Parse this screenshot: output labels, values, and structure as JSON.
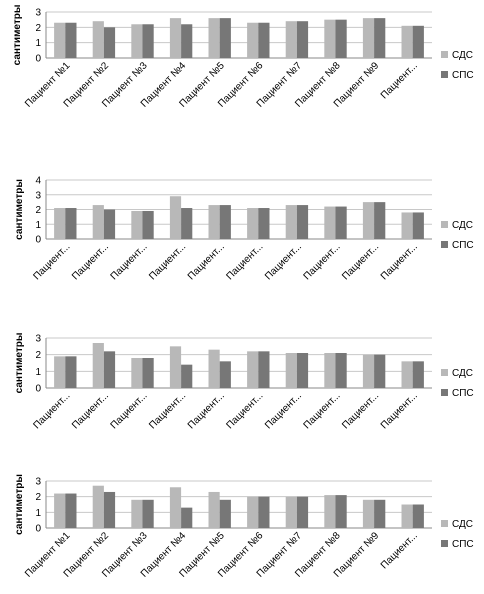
{
  "series_colors": {
    "sds": "#b8b8b8",
    "sps": "#777777"
  },
  "chart_data": [
    {
      "type": "bar",
      "ylabel": "сантиметры",
      "ylim": [
        0,
        3
      ],
      "yticks": [
        0,
        1,
        2,
        3
      ],
      "grid": true,
      "legend_position": "right",
      "categories": [
        "Пациент №1",
        "Пациент №2",
        "Пациент №3",
        "Пациент №4",
        "Пациент №5",
        "Пациент №6",
        "Пациент №7",
        "Пациент №8",
        "Пациент №9",
        "Пациент..."
      ],
      "series": [
        {
          "name": "СДС",
          "values": [
            2.3,
            2.4,
            2.2,
            2.6,
            2.6,
            2.3,
            2.4,
            2.5,
            2.6,
            2.1
          ]
        },
        {
          "name": "СПС",
          "values": [
            2.3,
            2.0,
            2.2,
            2.2,
            2.6,
            2.3,
            2.4,
            2.5,
            2.6,
            2.1
          ]
        }
      ]
    },
    {
      "type": "bar",
      "ylabel": "сантиметры",
      "ylim": [
        0,
        4
      ],
      "yticks": [
        0,
        1,
        2,
        3,
        4
      ],
      "grid": true,
      "legend_position": "right",
      "categories": [
        "Пациент...",
        "Пациент...",
        "Пациент...",
        "Пациент...",
        "Пациент...",
        "Пациент...",
        "Пациент...",
        "Пациент...",
        "Пациент...",
        "Пациент..."
      ],
      "series": [
        {
          "name": "СДС",
          "values": [
            2.1,
            2.3,
            1.9,
            2.9,
            2.3,
            2.1,
            2.3,
            2.2,
            2.5,
            1.8
          ]
        },
        {
          "name": "СПС",
          "values": [
            2.1,
            2.0,
            1.9,
            2.1,
            2.3,
            2.1,
            2.3,
            2.2,
            2.5,
            1.8
          ]
        }
      ]
    },
    {
      "type": "bar",
      "ylabel": "сантиметры",
      "ylim": [
        0,
        3
      ],
      "yticks": [
        0,
        1,
        2,
        3
      ],
      "grid": true,
      "legend_position": "right",
      "categories": [
        "Пациент...",
        "Пациент...",
        "Пациент...",
        "Пациент...",
        "Пациент...",
        "Пациент...",
        "Пациент...",
        "Пациент...",
        "Пациент...",
        "Пациент..."
      ],
      "series": [
        {
          "name": "СДС",
          "values": [
            1.9,
            2.7,
            1.8,
            2.5,
            2.3,
            2.2,
            2.1,
            2.1,
            2.0,
            1.6
          ]
        },
        {
          "name": "СПС",
          "values": [
            1.9,
            2.2,
            1.8,
            1.4,
            1.6,
            2.2,
            2.1,
            2.1,
            2.0,
            1.6
          ]
        }
      ]
    },
    {
      "type": "bar",
      "ylabel": "сантиметры",
      "ylim": [
        0,
        3
      ],
      "yticks": [
        0,
        1,
        2,
        3
      ],
      "grid": true,
      "legend_position": "right",
      "categories": [
        "Пациент №1",
        "Пациент №2",
        "Пациент №3",
        "Пациент №4",
        "Пациент №5",
        "Пациент №6",
        "Пациент №7",
        "Пациент №8",
        "Пациент №9",
        "Пациент..."
      ],
      "series": [
        {
          "name": "СДС",
          "values": [
            2.2,
            2.7,
            1.8,
            2.6,
            2.3,
            2.0,
            2.0,
            2.1,
            1.8,
            1.5
          ]
        },
        {
          "name": "СПС",
          "values": [
            2.2,
            2.3,
            1.8,
            1.3,
            1.8,
            2.0,
            2.0,
            2.1,
            1.8,
            1.5
          ]
        }
      ]
    }
  ]
}
